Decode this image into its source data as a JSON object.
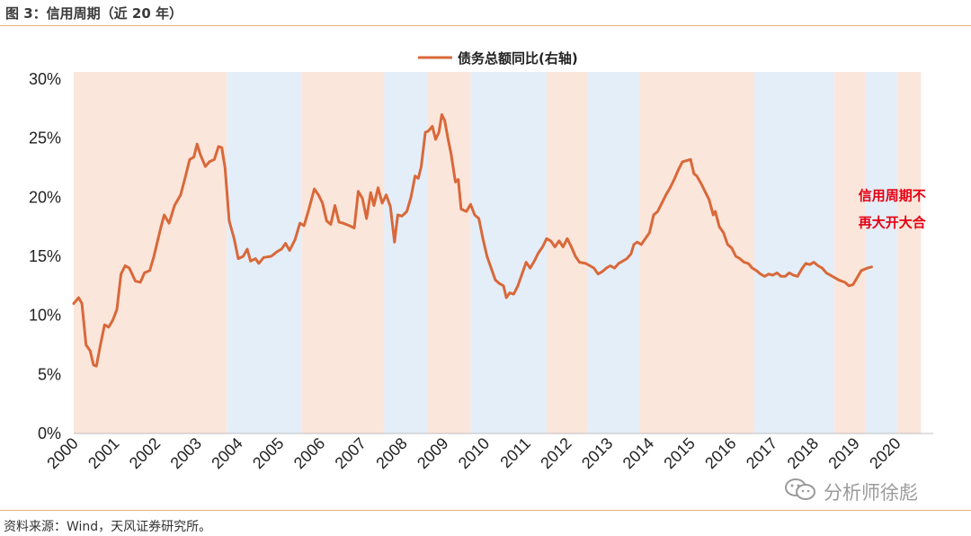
{
  "figure_title": "图 3：信用周期（近 20 年）",
  "source_note": "资料来源：Wind，天风证券研究所。",
  "watermark": {
    "icon": "wechat-icon",
    "text": "分析师徐彪"
  },
  "colors": {
    "line": "#d9683a",
    "band_pink": "#fbe6db",
    "band_blue": "#e3eef8",
    "annotation": "#e60012",
    "rule": "#e3b07a"
  },
  "chart_data": {
    "type": "line",
    "xlim": [
      2000.0,
      2020.9
    ],
    "ylim": [
      0,
      30
    ],
    "grid": false,
    "legend_position": "top-center",
    "x_ticks": [
      "2000",
      "2001",
      "2002",
      "2003",
      "2004",
      "2005",
      "2006",
      "2007",
      "2008",
      "2009",
      "2010",
      "2011",
      "2012",
      "2013",
      "2014",
      "2015",
      "2016",
      "2017",
      "2018",
      "2019",
      "2020"
    ],
    "y_ticks": [
      {
        "value": 0,
        "label": "0%"
      },
      {
        "value": 5,
        "label": "5%"
      },
      {
        "value": 10,
        "label": "10%"
      },
      {
        "value": 15,
        "label": "15%"
      },
      {
        "value": 20,
        "label": "20%"
      },
      {
        "value": 25,
        "label": "25%"
      },
      {
        "value": 30,
        "label": "30%"
      }
    ],
    "series": [
      {
        "name": "债务总额同比(右轴)",
        "points": [
          [
            2000.0,
            11.0
          ],
          [
            2000.12,
            11.5
          ],
          [
            2000.2,
            11.0
          ],
          [
            2000.3,
            7.5
          ],
          [
            2000.4,
            7.0
          ],
          [
            2000.48,
            5.8
          ],
          [
            2000.55,
            5.7
          ],
          [
            2000.65,
            7.5
          ],
          [
            2000.75,
            9.2
          ],
          [
            2000.85,
            9.0
          ],
          [
            2000.95,
            9.6
          ],
          [
            2001.05,
            10.5
          ],
          [
            2001.15,
            13.5
          ],
          [
            2001.25,
            14.2
          ],
          [
            2001.35,
            14.0
          ],
          [
            2001.5,
            12.9
          ],
          [
            2001.62,
            12.8
          ],
          [
            2001.72,
            13.6
          ],
          [
            2001.85,
            13.8
          ],
          [
            2001.95,
            15.0
          ],
          [
            2002.1,
            17.2
          ],
          [
            2002.2,
            18.5
          ],
          [
            2002.32,
            17.8
          ],
          [
            2002.45,
            19.3
          ],
          [
            2002.6,
            20.2
          ],
          [
            2002.72,
            21.8
          ],
          [
            2002.82,
            23.2
          ],
          [
            2002.92,
            23.4
          ],
          [
            2003.0,
            24.5
          ],
          [
            2003.08,
            23.6
          ],
          [
            2003.2,
            22.6
          ],
          [
            2003.3,
            23.0
          ],
          [
            2003.42,
            23.2
          ],
          [
            2003.52,
            24.3
          ],
          [
            2003.6,
            24.2
          ],
          [
            2003.68,
            22.5
          ],
          [
            2003.78,
            18.0
          ],
          [
            2003.9,
            16.5
          ],
          [
            2004.0,
            14.8
          ],
          [
            2004.12,
            15.0
          ],
          [
            2004.22,
            15.6
          ],
          [
            2004.3,
            14.6
          ],
          [
            2004.42,
            14.8
          ],
          [
            2004.5,
            14.4
          ],
          [
            2004.62,
            14.9
          ],
          [
            2004.8,
            15.0
          ],
          [
            2004.95,
            15.4
          ],
          [
            2005.05,
            15.6
          ],
          [
            2005.15,
            16.1
          ],
          [
            2005.25,
            15.5
          ],
          [
            2005.38,
            16.4
          ],
          [
            2005.5,
            17.8
          ],
          [
            2005.6,
            17.6
          ],
          [
            2005.72,
            19.0
          ],
          [
            2005.85,
            20.7
          ],
          [
            2005.95,
            20.2
          ],
          [
            2006.05,
            19.5
          ],
          [
            2006.15,
            18.0
          ],
          [
            2006.25,
            17.7
          ],
          [
            2006.35,
            19.3
          ],
          [
            2006.45,
            17.9
          ],
          [
            2006.55,
            17.8
          ],
          [
            2006.7,
            17.6
          ],
          [
            2006.82,
            17.4
          ],
          [
            2006.92,
            20.5
          ],
          [
            2007.02,
            19.9
          ],
          [
            2007.12,
            18.2
          ],
          [
            2007.22,
            20.4
          ],
          [
            2007.3,
            19.3
          ],
          [
            2007.4,
            20.8
          ],
          [
            2007.5,
            19.5
          ],
          [
            2007.6,
            20.2
          ],
          [
            2007.7,
            19.2
          ],
          [
            2007.8,
            16.2
          ],
          [
            2007.88,
            18.5
          ],
          [
            2007.98,
            18.4
          ],
          [
            2008.1,
            18.8
          ],
          [
            2008.2,
            20.0
          ],
          [
            2008.3,
            21.8
          ],
          [
            2008.38,
            21.6
          ],
          [
            2008.45,
            22.6
          ],
          [
            2008.55,
            25.5
          ],
          [
            2008.62,
            25.6
          ],
          [
            2008.72,
            26.0
          ],
          [
            2008.8,
            24.9
          ],
          [
            2008.88,
            25.5
          ],
          [
            2008.95,
            27.0
          ],
          [
            2009.02,
            26.5
          ],
          [
            2009.1,
            25.0
          ],
          [
            2009.18,
            23.6
          ],
          [
            2009.28,
            21.3
          ],
          [
            2009.35,
            21.5
          ],
          [
            2009.42,
            19.0
          ],
          [
            2009.55,
            18.8
          ],
          [
            2009.65,
            19.4
          ],
          [
            2009.75,
            18.5
          ],
          [
            2009.85,
            18.2
          ],
          [
            2009.95,
            16.5
          ],
          [
            2010.05,
            15.0
          ],
          [
            2010.15,
            14.0
          ],
          [
            2010.25,
            13.0
          ],
          [
            2010.35,
            12.7
          ],
          [
            2010.45,
            12.5
          ],
          [
            2010.52,
            11.5
          ],
          [
            2010.6,
            11.9
          ],
          [
            2010.7,
            11.8
          ],
          [
            2010.8,
            12.5
          ],
          [
            2010.9,
            13.5
          ],
          [
            2011.0,
            14.5
          ],
          [
            2011.1,
            14.0
          ],
          [
            2011.2,
            14.6
          ],
          [
            2011.3,
            15.3
          ],
          [
            2011.4,
            15.8
          ],
          [
            2011.5,
            16.5
          ],
          [
            2011.6,
            16.3
          ],
          [
            2011.7,
            15.8
          ],
          [
            2011.8,
            16.3
          ],
          [
            2011.9,
            15.8
          ],
          [
            2012.0,
            16.5
          ],
          [
            2012.1,
            15.8
          ],
          [
            2012.2,
            15.0
          ],
          [
            2012.3,
            14.5
          ],
          [
            2012.45,
            14.4
          ],
          [
            2012.55,
            14.2
          ],
          [
            2012.65,
            14.0
          ],
          [
            2012.75,
            13.5
          ],
          [
            2012.85,
            13.7
          ],
          [
            2012.95,
            14.0
          ],
          [
            2013.05,
            14.2
          ],
          [
            2013.15,
            14.0
          ],
          [
            2013.25,
            14.4
          ],
          [
            2013.35,
            14.6
          ],
          [
            2013.45,
            14.8
          ],
          [
            2013.55,
            15.2
          ],
          [
            2013.62,
            16.0
          ],
          [
            2013.7,
            16.2
          ],
          [
            2013.8,
            16.0
          ],
          [
            2013.9,
            16.5
          ],
          [
            2014.0,
            17.0
          ],
          [
            2014.1,
            18.5
          ],
          [
            2014.2,
            18.8
          ],
          [
            2014.3,
            19.5
          ],
          [
            2014.4,
            20.2
          ],
          [
            2014.5,
            20.8
          ],
          [
            2014.6,
            21.5
          ],
          [
            2014.7,
            22.3
          ],
          [
            2014.8,
            23.0
          ],
          [
            2014.9,
            23.1
          ],
          [
            2015.0,
            23.2
          ],
          [
            2015.08,
            22.0
          ],
          [
            2015.15,
            21.8
          ],
          [
            2015.25,
            21.2
          ],
          [
            2015.35,
            20.5
          ],
          [
            2015.45,
            19.8
          ],
          [
            2015.55,
            18.5
          ],
          [
            2015.6,
            18.8
          ],
          [
            2015.7,
            17.5
          ],
          [
            2015.8,
            17.0
          ],
          [
            2015.9,
            16.0
          ],
          [
            2016.0,
            15.7
          ],
          [
            2016.1,
            15.0
          ],
          [
            2016.2,
            14.8
          ],
          [
            2016.3,
            14.5
          ],
          [
            2016.4,
            14.4
          ],
          [
            2016.5,
            14.0
          ],
          [
            2016.6,
            13.8
          ],
          [
            2016.7,
            13.5
          ],
          [
            2016.8,
            13.3
          ],
          [
            2016.9,
            13.5
          ],
          [
            2017.0,
            13.4
          ],
          [
            2017.1,
            13.6
          ],
          [
            2017.2,
            13.3
          ],
          [
            2017.3,
            13.3
          ],
          [
            2017.4,
            13.6
          ],
          [
            2017.5,
            13.4
          ],
          [
            2017.6,
            13.3
          ],
          [
            2017.7,
            13.9
          ],
          [
            2017.8,
            14.4
          ],
          [
            2017.9,
            14.3
          ],
          [
            2018.0,
            14.5
          ],
          [
            2018.1,
            14.2
          ],
          [
            2018.2,
            14.0
          ],
          [
            2018.3,
            13.6
          ],
          [
            2018.45,
            13.3
          ],
          [
            2018.6,
            13.0
          ],
          [
            2018.75,
            12.8
          ],
          [
            2018.85,
            12.5
          ],
          [
            2018.95,
            12.6
          ],
          [
            2019.05,
            13.2
          ],
          [
            2019.15,
            13.8
          ],
          [
            2019.3,
            14.0
          ],
          [
            2019.4,
            14.1
          ]
        ]
      }
    ],
    "shaded_periods": [
      {
        "start": 2000.0,
        "end": 2003.72,
        "cycle": "expansion"
      },
      {
        "start": 2003.72,
        "end": 2005.55,
        "cycle": "contraction"
      },
      {
        "start": 2005.55,
        "end": 2007.55,
        "cycle": "expansion"
      },
      {
        "start": 2007.55,
        "end": 2008.6,
        "cycle": "contraction"
      },
      {
        "start": 2008.6,
        "end": 2009.65,
        "cycle": "expansion"
      },
      {
        "start": 2009.65,
        "end": 2011.5,
        "cycle": "contraction"
      },
      {
        "start": 2011.5,
        "end": 2012.5,
        "cycle": "expansion"
      },
      {
        "start": 2012.5,
        "end": 2013.75,
        "cycle": "contraction"
      },
      {
        "start": 2013.75,
        "end": 2016.55,
        "cycle": "expansion"
      },
      {
        "start": 2016.55,
        "end": 2018.5,
        "cycle": "contraction"
      },
      {
        "start": 2018.5,
        "end": 2019.25,
        "cycle": "expansion"
      },
      {
        "start": 2019.25,
        "end": 2020.02,
        "cycle": "contraction"
      },
      {
        "start": 2020.02,
        "end": 2020.6,
        "cycle": "expansion"
      }
    ],
    "annotation": {
      "lines": [
        "信用周期不",
        "再大开大合"
      ],
      "anchor": [
        2019.9,
        19.0
      ]
    }
  }
}
